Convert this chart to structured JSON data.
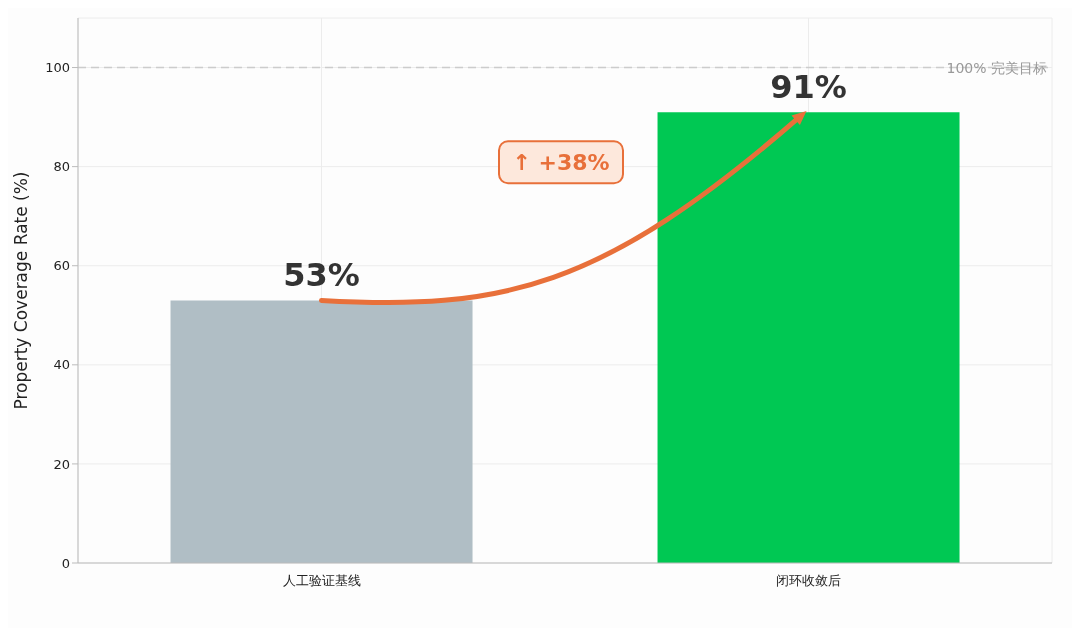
{
  "chart_data": {
    "type": "bar",
    "ylabel": "Property Coverage Rate (%)",
    "categories": [
      "人工验证基线",
      "闭环收敛后"
    ],
    "values": [
      53,
      91
    ],
    "colors": [
      "#b0bec5",
      "#00c853"
    ],
    "value_labels": [
      "53%",
      "91%"
    ],
    "ylim": [
      0,
      110
    ],
    "yticks": [
      0,
      20,
      40,
      60,
      80,
      100
    ],
    "grid": true,
    "ref_lines": [
      {
        "axis": "y",
        "value": 100,
        "label": "100% 完美目标",
        "color": "#cccccc",
        "line_style": "dashed"
      }
    ],
    "annotations": [
      "↑ +38%"
    ]
  }
}
